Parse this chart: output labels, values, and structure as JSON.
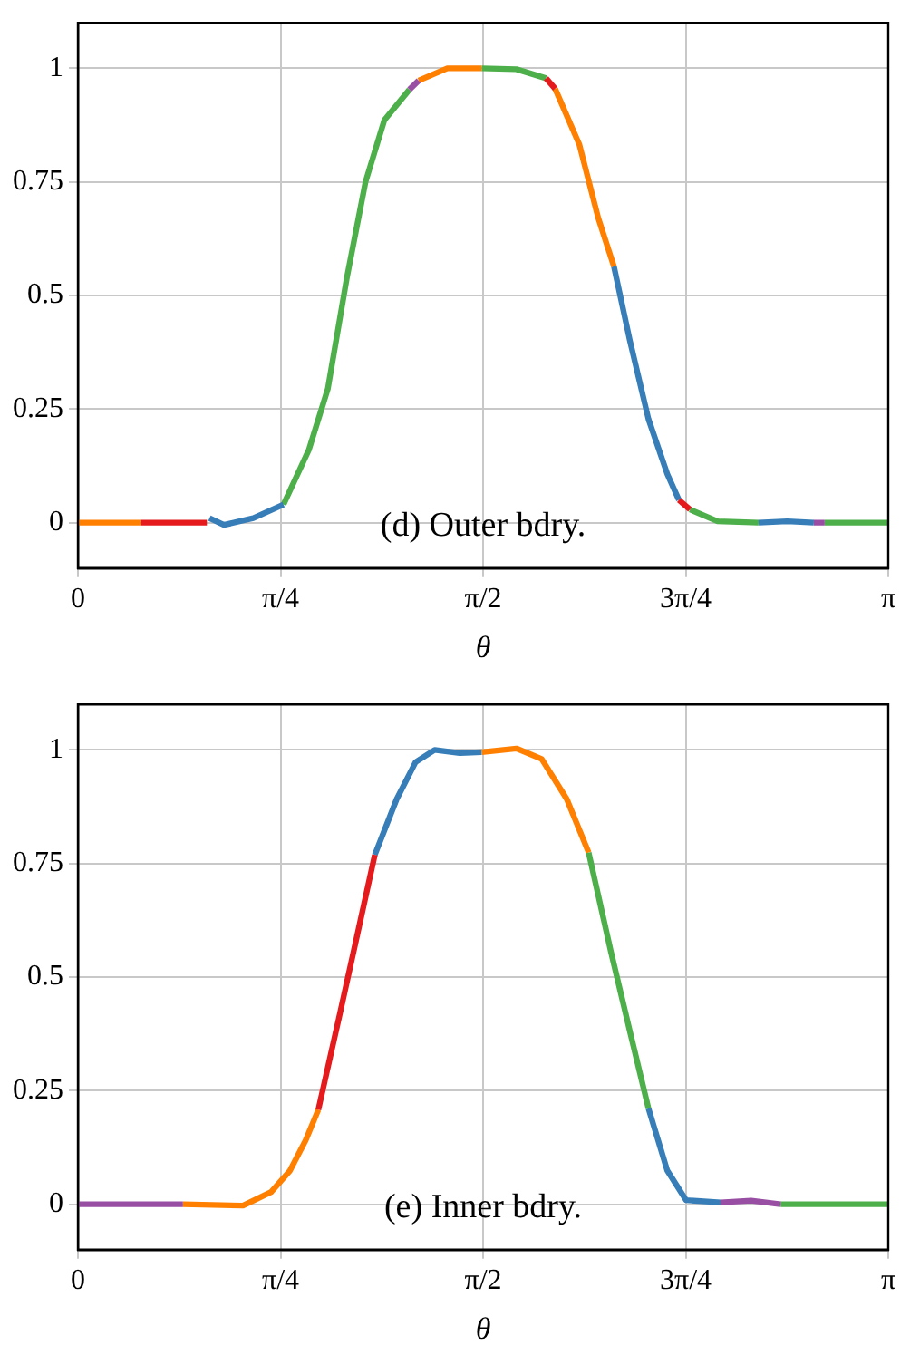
{
  "chart_data": [
    {
      "type": "line",
      "xlabel": "θ",
      "annotations": [
        "(d) Outer bdry."
      ],
      "grid": true,
      "legend": false,
      "xlim": [
        0,
        3.1416
      ],
      "xticks": [
        0,
        {
          "value": 0.7854,
          "label": "π/4"
        },
        {
          "value": 1.5708,
          "label": "π/2"
        },
        {
          "value": 2.3562,
          "label": "3π/4"
        },
        {
          "value": 3.1416,
          "label": "π"
        }
      ],
      "ylim": [
        -0.1,
        1.1
      ],
      "yticks": [
        0,
        0.25,
        0.5,
        0.75,
        1
      ],
      "series": [
        {
          "color": "#ff7f00",
          "x": [
            0,
            0.244
          ],
          "values": [
            0,
            0
          ]
        },
        {
          "color": "#e41a1c",
          "x": [
            0.244,
            0.5
          ],
          "values": [
            0,
            0
          ]
        },
        {
          "color": "#377eb8",
          "x": [
            0.51,
            0.566,
            0.68,
            0.797
          ],
          "values": [
            0.01,
            -0.005,
            0.01,
            0.04
          ]
        },
        {
          "color": "#4daf4a",
          "x": [
            0.797,
            0.895,
            0.969,
            1.042,
            1.115,
            1.188,
            1.285
          ],
          "values": [
            0.04,
            0.16,
            0.295,
            0.537,
            0.75,
            0.886,
            0.953
          ]
        },
        {
          "color": "#984ea3",
          "x": [
            1.285,
            1.321
          ],
          "values": [
            0.953,
            0.973
          ]
        },
        {
          "color": "#ff7f00",
          "x": [
            1.321,
            1.432,
            1.565
          ],
          "values": [
            0.973,
            1.0,
            1.0
          ]
        },
        {
          "color": "#4daf4a",
          "x": [
            1.565,
            1.7,
            1.815
          ],
          "values": [
            1.0,
            0.998,
            0.978
          ]
        },
        {
          "color": "#e41a1c",
          "x": [
            1.815,
            1.85
          ],
          "values": [
            0.978,
            0.955
          ]
        },
        {
          "color": "#ff7f00",
          "x": [
            1.85,
            1.944,
            2.017,
            2.078
          ],
          "values": [
            0.955,
            0.832,
            0.671,
            0.564
          ]
        },
        {
          "color": "#377eb8",
          "x": [
            2.078,
            2.139,
            2.212,
            2.285,
            2.33
          ],
          "values": [
            0.564,
            0.403,
            0.228,
            0.107,
            0.05
          ]
        },
        {
          "color": "#e41a1c",
          "x": [
            2.33,
            2.373
          ],
          "values": [
            0.05,
            0.029
          ]
        },
        {
          "color": "#4daf4a",
          "x": [
            2.373,
            2.48,
            2.639
          ],
          "values": [
            0.029,
            0.003,
            0
          ]
        },
        {
          "color": "#377eb8",
          "x": [
            2.639,
            2.75,
            2.853
          ],
          "values": [
            0,
            0.003,
            0
          ]
        },
        {
          "color": "#984ea3",
          "x": [
            2.853,
            2.895
          ],
          "values": [
            0,
            0
          ]
        },
        {
          "color": "#4daf4a",
          "x": [
            2.895,
            3.1416
          ],
          "values": [
            0,
            0
          ]
        }
      ]
    },
    {
      "type": "line",
      "xlabel": "θ",
      "annotations": [
        "(e) Inner bdry."
      ],
      "grid": true,
      "legend": false,
      "xlim": [
        0,
        3.1416
      ],
      "xticks": [
        0,
        {
          "value": 0.7854,
          "label": "π/4"
        },
        {
          "value": 1.5708,
          "label": "π/2"
        },
        {
          "value": 2.3562,
          "label": "3π/4"
        },
        {
          "value": 3.1416,
          "label": "π"
        }
      ],
      "ylim": [
        -0.1,
        1.1
      ],
      "yticks": [
        0,
        0.25,
        0.5,
        0.75,
        1
      ],
      "series": [
        {
          "color": "#984ea3",
          "x": [
            0,
            0.407
          ],
          "values": [
            0,
            0
          ]
        },
        {
          "color": "#ff7f00",
          "x": [
            0.407,
            0.64,
            0.749,
            0.822,
            0.883,
            0.932
          ],
          "values": [
            0,
            -0.003,
            0.027,
            0.074,
            0.141,
            0.208
          ]
        },
        {
          "color": "#e41a1c",
          "x": [
            0.932,
            1.017,
            1.09,
            1.151
          ],
          "values": [
            0.208,
            0.423,
            0.611,
            0.769
          ]
        },
        {
          "color": "#377eb8",
          "x": [
            1.151,
            1.236,
            1.309,
            1.383,
            1.48,
            1.565
          ],
          "values": [
            0.769,
            0.892,
            0.973,
            1.0,
            0.993,
            0.995
          ]
        },
        {
          "color": "#ff7f00",
          "x": [
            1.565,
            1.7,
            1.798,
            1.895,
            1.98
          ],
          "values": [
            0.995,
            1.003,
            0.98,
            0.892,
            0.774
          ]
        },
        {
          "color": "#4daf4a",
          "x": [
            1.98,
            2.066,
            2.139,
            2.212
          ],
          "values": [
            0.774,
            0.557,
            0.383,
            0.211
          ]
        },
        {
          "color": "#377eb8",
          "x": [
            2.212,
            2.285,
            2.358,
            2.492
          ],
          "values": [
            0.211,
            0.074,
            0.009,
            0.004
          ]
        },
        {
          "color": "#984ea3",
          "x": [
            2.492,
            2.61,
            2.724
          ],
          "values": [
            0.004,
            0.008,
            0
          ]
        },
        {
          "color": "#4daf4a",
          "x": [
            2.724,
            3.1416
          ],
          "values": [
            0,
            0
          ]
        }
      ]
    }
  ]
}
